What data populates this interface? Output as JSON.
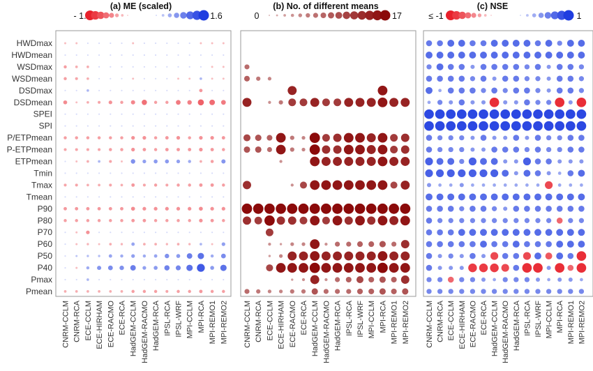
{
  "chart_data": [
    {
      "type": "bubble-matrix",
      "panel": "a",
      "title": "(a)  ME (scaled)",
      "legend": {
        "min_label": "- 1.6",
        "max_label": "1.6",
        "neg_color": "#e8212b",
        "pos_color": "#1f3de0",
        "range": [
          -1.6,
          1.6
        ]
      },
      "values": [
        [
          -0.1,
          -0.1,
          0,
          0,
          0,
          0,
          -0.1,
          0,
          0,
          0,
          0,
          0,
          -0.1,
          -0.1,
          -0.1
        ],
        [
          0,
          0,
          0,
          0,
          0,
          0,
          0,
          0,
          0,
          0,
          0,
          0,
          0,
          0,
          0
        ],
        [
          -0.3,
          -0.2,
          -0.2,
          0,
          0,
          0,
          0,
          0,
          0,
          0,
          0,
          0,
          0,
          -0.1,
          -0.1
        ],
        [
          -0.3,
          -0.25,
          -0.2,
          0,
          0,
          0,
          -0.1,
          0,
          0,
          0,
          -0.1,
          -0.1,
          0.2,
          -0.1,
          -0.1
        ],
        [
          0,
          0,
          0.2,
          0,
          0,
          0,
          0,
          0,
          0,
          0,
          0,
          0,
          -0.35,
          0,
          0
        ],
        [
          -0.45,
          -0.1,
          -0.2,
          -0.25,
          -0.4,
          -0.3,
          -0.5,
          -0.7,
          -0.3,
          -0.3,
          -0.6,
          -0.55,
          -0.85,
          -0.75,
          -0.6
        ],
        [
          0,
          0,
          0,
          0,
          0,
          0,
          0,
          0,
          0,
          0,
          0,
          0,
          0,
          0,
          0
        ],
        [
          0,
          0,
          0,
          0,
          0,
          0,
          0,
          0,
          0,
          0,
          0,
          0,
          0,
          0,
          0
        ],
        [
          -0.3,
          -0.3,
          -0.3,
          -0.3,
          -0.3,
          -0.3,
          -0.4,
          -0.4,
          -0.3,
          -0.35,
          -0.4,
          -0.3,
          -0.4,
          -0.4,
          -0.35
        ],
        [
          -0.25,
          -0.25,
          -0.25,
          -0.25,
          -0.3,
          -0.3,
          -0.4,
          -0.35,
          -0.3,
          -0.35,
          -0.35,
          -0.35,
          -0.4,
          -0.35,
          -0.3
        ],
        [
          0,
          -0.1,
          -0.2,
          0.2,
          -0.25,
          -0.1,
          0.55,
          0.4,
          0.45,
          0.45,
          0.4,
          0.3,
          -0.2,
          -0.3,
          0.5
        ],
        [
          0,
          0,
          0,
          0,
          0,
          0,
          0,
          0,
          0,
          0,
          0,
          0,
          0,
          0,
          0
        ],
        [
          -0.25,
          -0.25,
          -0.2,
          -0.2,
          -0.25,
          -0.2,
          -0.35,
          -0.25,
          -0.3,
          -0.25,
          -0.3,
          -0.3,
          -0.35,
          -0.35,
          -0.3
        ],
        [
          0,
          0,
          0,
          0,
          0,
          0,
          0,
          0,
          0,
          0,
          0,
          0,
          0,
          0,
          0
        ],
        [
          -0.35,
          -0.35,
          -0.35,
          -0.35,
          -0.35,
          -0.35,
          -0.45,
          -0.4,
          -0.4,
          -0.4,
          -0.4,
          -0.4,
          -0.45,
          -0.4,
          -0.4
        ],
        [
          -0.3,
          -0.3,
          -0.3,
          -0.3,
          -0.3,
          -0.3,
          -0.35,
          -0.35,
          -0.3,
          -0.3,
          -0.3,
          -0.3,
          -0.4,
          -0.35,
          -0.3
        ],
        [
          0,
          -0.1,
          -0.4,
          0,
          0,
          0,
          0,
          0,
          0,
          0,
          0,
          0,
          0,
          0,
          0
        ],
        [
          0,
          -0.1,
          -0.15,
          -0.1,
          -0.2,
          -0.15,
          0.35,
          -0.2,
          -0.2,
          -0.15,
          -0.2,
          -0.15,
          0.2,
          -0.1,
          0.4
        ],
        [
          0,
          0.1,
          0.15,
          0.15,
          0.35,
          0.3,
          0.4,
          0.3,
          0.35,
          0.55,
          0.45,
          0.75,
          0.9,
          0.3,
          0.6
        ],
        [
          0,
          -0.1,
          0.3,
          0.5,
          0.6,
          0.55,
          0.75,
          0.4,
          0.45,
          0.7,
          0.65,
          0.9,
          1.2,
          0.45,
          0.9
        ],
        [
          0,
          0,
          0.2,
          0,
          0,
          0,
          0,
          0,
          0,
          0,
          0,
          0,
          0,
          0,
          0
        ],
        [
          -0.2,
          -0.2,
          -0.2,
          -0.2,
          -0.2,
          -0.2,
          -0.3,
          -0.3,
          -0.3,
          -0.25,
          -0.3,
          -0.3,
          -0.35,
          -0.3,
          -0.3
        ]
      ]
    },
    {
      "type": "bubble-matrix",
      "panel": "b",
      "title": "(b)  No. of different means",
      "legend": {
        "min_label": "0",
        "max_label": "17",
        "color": "#8b0a0a",
        "range": [
          0,
          17
        ]
      },
      "values": [
        [
          0,
          0,
          0,
          0,
          0,
          0,
          0,
          0,
          0,
          0,
          0,
          0,
          0,
          0,
          0
        ],
        [
          0,
          0,
          0,
          0,
          0,
          0,
          0,
          0,
          0,
          0,
          0,
          0,
          0,
          0,
          0
        ],
        [
          5,
          0,
          0,
          0,
          0,
          0,
          0,
          0,
          0,
          0,
          0,
          0,
          0,
          0,
          0
        ],
        [
          6,
          4,
          3,
          0,
          0,
          0,
          0,
          0,
          0,
          0,
          0,
          0,
          0,
          0,
          0
        ],
        [
          0,
          0,
          0,
          0,
          11,
          0,
          0,
          0,
          0,
          0,
          0,
          0,
          12,
          0,
          0
        ],
        [
          11,
          0,
          2,
          4,
          9,
          9,
          11,
          9,
          9,
          11,
          11,
          11,
          12,
          11,
          11
        ],
        [
          0,
          0,
          0,
          0,
          0,
          0,
          0,
          0,
          0,
          0,
          0,
          0,
          0,
          0,
          0
        ],
        [
          0,
          0,
          0,
          0,
          0,
          0,
          0,
          0,
          0,
          0,
          0,
          0,
          0,
          0,
          0
        ],
        [
          8,
          7,
          6,
          12,
          4,
          3,
          13,
          9,
          10,
          12,
          12,
          11,
          12,
          9,
          10
        ],
        [
          7,
          7,
          5,
          12,
          4,
          3,
          13,
          10,
          10,
          12,
          12,
          11,
          12,
          9,
          10
        ],
        [
          0,
          0,
          0,
          2,
          0,
          0,
          12,
          11,
          11,
          11,
          11,
          11,
          12,
          11,
          11
        ],
        [
          0,
          0,
          0,
          0,
          0,
          0,
          0,
          0,
          0,
          0,
          0,
          0,
          0,
          0,
          0
        ],
        [
          10,
          0,
          0,
          0,
          2,
          8,
          12,
          12,
          12,
          12,
          12,
          12,
          12,
          8,
          11
        ],
        [
          0,
          0,
          0,
          0,
          0,
          0,
          0,
          0,
          0,
          0,
          0,
          0,
          0,
          0,
          0
        ],
        [
          13,
          13,
          13,
          13,
          13,
          13,
          13,
          13,
          13,
          13,
          13,
          13,
          13,
          13,
          13
        ],
        [
          10,
          9,
          13,
          10,
          10,
          9,
          12,
          9,
          12,
          10,
          12,
          10,
          12,
          11,
          12
        ],
        [
          0,
          0,
          9,
          0,
          0,
          0,
          0,
          0,
          0,
          0,
          0,
          0,
          0,
          0,
          0
        ],
        [
          0,
          0,
          2,
          1,
          3,
          3,
          12,
          2,
          5,
          5,
          6,
          6,
          7,
          5,
          10
        ],
        [
          0,
          0,
          1,
          3,
          11,
          11,
          12,
          11,
          11,
          11,
          11,
          11,
          12,
          11,
          11
        ],
        [
          0,
          0,
          8,
          12,
          12,
          12,
          13,
          12,
          12,
          12,
          12,
          12,
          13,
          12,
          12
        ],
        [
          0,
          0,
          0,
          0,
          1,
          2,
          11,
          2,
          5,
          6,
          8,
          6,
          7,
          6,
          10
        ],
        [
          5,
          4,
          3,
          3,
          4,
          4,
          7,
          5,
          5,
          5,
          6,
          6,
          7,
          6,
          7
        ]
      ]
    },
    {
      "type": "bubble-matrix",
      "panel": "c",
      "title": "(c)  NSE",
      "legend": {
        "min_label": "≤ -1",
        "max_label": "1",
        "neg_color": "#e8212b",
        "pos_color": "#1f3de0",
        "range": [
          -1,
          1
        ]
      },
      "values": [
        [
          0.5,
          0.5,
          0.6,
          0.6,
          0.5,
          0.5,
          0.6,
          0.6,
          0.6,
          0.6,
          0.5,
          0.6,
          0.4,
          0.6,
          0.6
        ],
        [
          0.6,
          0.6,
          0.6,
          0.6,
          0.6,
          0.6,
          0.6,
          0.6,
          0.6,
          0.6,
          0.6,
          0.6,
          0.6,
          0.6,
          0.6
        ],
        [
          0.4,
          0.6,
          0.5,
          0.5,
          0.3,
          0.5,
          0.5,
          0.5,
          0.5,
          0.4,
          0.5,
          0.3,
          0.5,
          0.5,
          0.4
        ],
        [
          0.5,
          0.5,
          0.5,
          0.5,
          0.4,
          0.5,
          0.3,
          0.5,
          0.5,
          0.4,
          0.4,
          0.3,
          0.5,
          0.5,
          0.4
        ],
        [
          0.6,
          0.2,
          0.5,
          0.5,
          0.5,
          0.4,
          0.5,
          0.4,
          0.5,
          0.5,
          0.4,
          0.3,
          0.5,
          0.5,
          0.4
        ],
        [
          0.2,
          0.4,
          0.3,
          0.5,
          0.3,
          0.3,
          -0.9,
          0.3,
          0.3,
          0.5,
          0.4,
          0.4,
          -0.9,
          0.3,
          -0.9
        ],
        [
          0.9,
          0.9,
          0.9,
          0.9,
          0.9,
          0.9,
          0.9,
          0.9,
          0.9,
          0.9,
          0.9,
          0.9,
          0.9,
          0.9,
          0.9
        ],
        [
          0.9,
          0.9,
          0.9,
          0.9,
          0.9,
          0.9,
          0.9,
          0.9,
          0.9,
          0.9,
          0.9,
          0.9,
          0.9,
          0.9,
          0.9
        ],
        [
          0.5,
          0.4,
          0.4,
          0.4,
          0.3,
          0.5,
          0.3,
          0.3,
          0.5,
          0.3,
          0.5,
          0.4,
          0.4,
          0.5,
          0.5
        ],
        [
          0.5,
          0.4,
          0.4,
          0.4,
          0.3,
          0.3,
          0.5,
          0.5,
          0.5,
          0.4,
          0.5,
          0.4,
          0.4,
          0.5,
          0.5
        ],
        [
          0.7,
          0.6,
          0.6,
          0.4,
          0.7,
          0.6,
          0.6,
          0.3,
          0.3,
          0.7,
          0.5,
          0.5,
          0.3,
          0.3,
          0.3
        ],
        [
          0.7,
          0.7,
          0.7,
          0.7,
          0.7,
          0.7,
          0.7,
          0.6,
          0.3,
          0.6,
          0.5,
          0.3,
          0.2,
          0.5,
          0.6
        ],
        [
          0.3,
          0.2,
          0.2,
          0.3,
          0.2,
          0.2,
          0.2,
          0.2,
          0.2,
          0.2,
          0.2,
          -0.7,
          0.2,
          0.2,
          0.2
        ],
        [
          0.6,
          0.6,
          0.6,
          0.6,
          0.6,
          0.6,
          0.6,
          0.6,
          0.6,
          0.6,
          0.6,
          0.6,
          0.6,
          0.6,
          0.6
        ],
        [
          0.5,
          0.5,
          0.5,
          0.4,
          0.5,
          0.5,
          0.4,
          0.3,
          0.5,
          0.5,
          0.5,
          0.5,
          0.5,
          0.5,
          0.5
        ],
        [
          0.5,
          0.4,
          0.4,
          0.4,
          0.4,
          0.4,
          0.4,
          0.4,
          0.4,
          0.4,
          0.4,
          0.4,
          -0.5,
          0.4,
          0.4
        ],
        [
          0.5,
          0.5,
          0.5,
          0.6,
          0.6,
          0.6,
          0.6,
          0.6,
          0.6,
          0.6,
          0.6,
          0.6,
          0.6,
          0.6,
          0.6
        ],
        [
          0.5,
          0.5,
          0.5,
          0.5,
          0.5,
          0.6,
          0.5,
          0.5,
          0.6,
          0.5,
          0.5,
          0.5,
          0.6,
          0.6,
          0.6
        ],
        [
          0.5,
          0.3,
          0.4,
          0.3,
          0.5,
          0.3,
          -0.7,
          0.5,
          0.5,
          -0.7,
          0.6,
          -0.6,
          0.6,
          0.5,
          -0.9
        ],
        [
          0.5,
          0.3,
          0.3,
          0.3,
          -0.8,
          -0.8,
          -0.8,
          -0.7,
          0.5,
          -0.9,
          -0.9,
          0.3,
          -0.9,
          -0.5,
          -0.9
        ],
        [
          0.4,
          0.4,
          -0.5,
          0.4,
          0.4,
          0.3,
          0.2,
          0.4,
          0.4,
          0.4,
          0.3,
          0.2,
          0.3,
          0.3,
          0.2
        ],
        [
          0.4,
          0.4,
          0.4,
          0.4,
          0.4,
          0.4,
          0.4,
          0.4,
          0.4,
          0.4,
          0.4,
          0.4,
          0.4,
          0.4,
          0.4
        ]
      ]
    }
  ],
  "rows": [
    "HWDmax",
    "HWDmean",
    "WSDmax",
    "WSDmean",
    "DSDmax",
    "DSDmean",
    "SPEI",
    "SPI",
    "P/ETPmean",
    "P-ETPmean",
    "ETPmean",
    "Tmin",
    "Tmax",
    "Tmean",
    "P90",
    "P80",
    "P70",
    "P60",
    "P50",
    "P40",
    "Pmax",
    "Pmean"
  ],
  "columns": [
    "CNRM-CCLM",
    "CNRM-RCA",
    "ECE-CCLM",
    "ECE-HIRHAM",
    "ECE-RACMO",
    "ECE-RCA",
    "HadGEM-CCLM",
    "HadGEM-RACMO",
    "HadGEM-RCA",
    "IPSL-RCA",
    "IPSL-WRF",
    "MPI-CCLM",
    "MPI-RCA",
    "MPI-REMO1",
    "MPI-REMO2"
  ]
}
